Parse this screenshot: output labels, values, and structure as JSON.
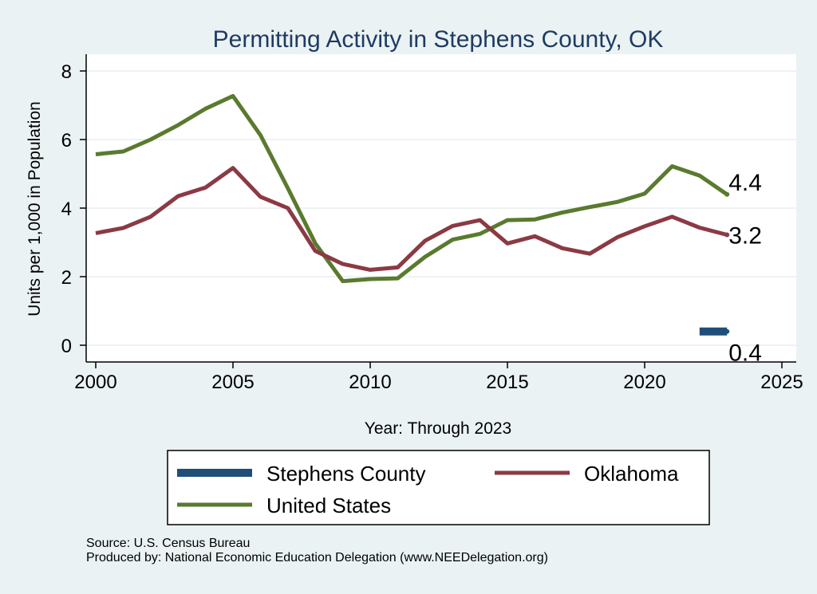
{
  "chart_data": {
    "type": "line",
    "title": "Permitting Activity in Stephens County, OK",
    "xlabel": "Year: Through 2023",
    "ylabel": "Units per 1,000 in Population",
    "xlim": [
      2000,
      2025
    ],
    "ylim": [
      0,
      8
    ],
    "xticks": [
      2000,
      2005,
      2010,
      2015,
      2020,
      2025
    ],
    "yticks": [
      0,
      2,
      4,
      6,
      8
    ],
    "grid": true,
    "legend_position": "bottom",
    "series": [
      {
        "name": "Stephens County",
        "color": "#1f4e79",
        "end_label": "0.4",
        "x": [
          2022,
          2023
        ],
        "values": [
          0.4,
          0.4
        ]
      },
      {
        "name": "Oklahoma",
        "color": "#8b3a44",
        "end_label": "3.2",
        "x": [
          2000,
          2001,
          2002,
          2003,
          2004,
          2005,
          2006,
          2007,
          2008,
          2009,
          2010,
          2011,
          2012,
          2013,
          2014,
          2015,
          2016,
          2017,
          2018,
          2019,
          2020,
          2021,
          2022,
          2023
        ],
        "values": [
          3.27,
          3.42,
          3.75,
          4.35,
          4.6,
          5.17,
          4.33,
          4.0,
          2.75,
          2.37,
          2.2,
          2.27,
          3.05,
          3.48,
          3.65,
          2.97,
          3.18,
          2.83,
          2.67,
          3.15,
          3.47,
          3.75,
          3.43,
          3.22
        ]
      },
      {
        "name": "United States",
        "color": "#5a7a2f",
        "end_label": "4.4",
        "x": [
          2000,
          2001,
          2002,
          2003,
          2004,
          2005,
          2006,
          2007,
          2008,
          2009,
          2010,
          2011,
          2012,
          2013,
          2014,
          2015,
          2016,
          2017,
          2018,
          2019,
          2020,
          2021,
          2022,
          2023
        ],
        "values": [
          5.57,
          5.65,
          6.0,
          6.42,
          6.9,
          7.27,
          6.13,
          4.58,
          2.97,
          1.87,
          1.93,
          1.95,
          2.58,
          3.08,
          3.25,
          3.65,
          3.67,
          3.87,
          4.03,
          4.18,
          4.42,
          5.22,
          4.95,
          4.4
        ]
      }
    ]
  },
  "footer": {
    "source": "Source: U.S. Census Bureau",
    "produced_by": "Produced by: National Economic Education Delegation (www.NEEDelegation.org)"
  }
}
